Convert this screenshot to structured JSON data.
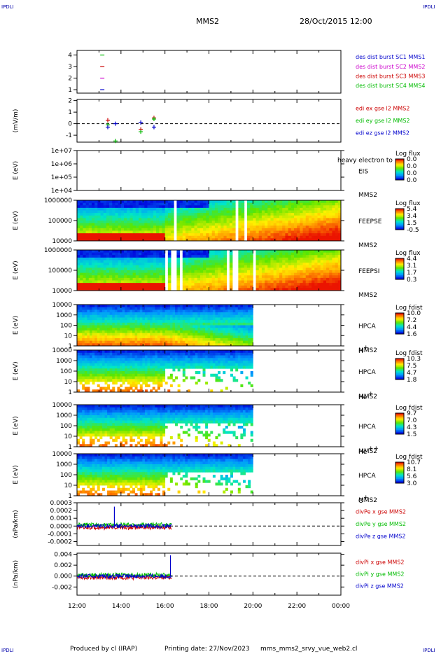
{
  "header": {
    "corner_left": "IPDLI",
    "corner_right": "IPDLI",
    "title": "MMS2",
    "datetime": "28/Oct/2015 12:00"
  },
  "footer": {
    "produced": "Produced by cl (IRAP)",
    "printing": "Printing date: 27/Nov/2023",
    "script": "mms_mms2_srvy_vue_web2.cl",
    "corner_left": "IPDLI",
    "corner_right": "IPDLI"
  },
  "time_axis": {
    "labels": [
      "12:00",
      "14:00",
      "16:00",
      "18:00",
      "20:00",
      "22:00",
      "00:00"
    ],
    "range_hours": [
      12,
      24
    ]
  },
  "chart_data": [
    {
      "type": "scatter",
      "id": "burst",
      "ylim": [
        0.7,
        4.4
      ],
      "yticks": [
        "1",
        "2",
        "3",
        "4"
      ],
      "legend": [
        {
          "label": "des dist burst SC1 MMS1",
          "color": "#0000cc"
        },
        {
          "label": "des dist burst SC2 MMS2",
          "color": "#cc00cc"
        },
        {
          "label": "des dist burst SC3 MMS3",
          "color": "#cc0000"
        },
        {
          "label": "des dist burst SC4 MMS4",
          "color": "#00bb00"
        }
      ],
      "points": [
        {
          "x": 13.15,
          "y": 4,
          "color": "#00bb00"
        },
        {
          "x": 13.15,
          "y": 3,
          "color": "#cc0000"
        },
        {
          "x": 13.15,
          "y": 2,
          "color": "#cc00cc"
        },
        {
          "x": 13.15,
          "y": 1,
          "color": "#0000cc"
        }
      ]
    },
    {
      "type": "scatter",
      "id": "edi",
      "ylabel": "(mV/m)",
      "ylim": [
        -1.6,
        2.1
      ],
      "yticks": [
        "-1",
        "0",
        "1",
        "2"
      ],
      "zero_line": true,
      "legend": [
        {
          "label": "edi ex gse l2 MMS2",
          "color": "#cc0000"
        },
        {
          "label": "edi ey gse l2 MMS2",
          "color": "#00bb00"
        },
        {
          "label": "edi ez gse l2 MMS2",
          "color": "#0000cc"
        }
      ],
      "points": [
        {
          "x": 13.4,
          "y": 0.3,
          "color": "#cc0000"
        },
        {
          "x": 13.4,
          "y": -0.1,
          "color": "#00bb00"
        },
        {
          "x": 13.4,
          "y": -0.3,
          "color": "#0000cc"
        },
        {
          "x": 13.75,
          "y": -1.5,
          "color": "#00bb00"
        },
        {
          "x": 13.75,
          "y": 0.0,
          "color": "#0000cc"
        },
        {
          "x": 14.9,
          "y": -0.5,
          "color": "#cc0000"
        },
        {
          "x": 14.9,
          "y": -0.7,
          "color": "#00bb00"
        },
        {
          "x": 14.9,
          "y": 0.1,
          "color": "#0000cc"
        },
        {
          "x": 15.5,
          "y": 0.5,
          "color": "#cc0000"
        },
        {
          "x": 15.5,
          "y": 0.4,
          "color": "#00bb00"
        },
        {
          "x": 15.5,
          "y": -0.3,
          "color": "#0000cc"
        }
      ]
    },
    {
      "type": "heatmap",
      "id": "eis",
      "ylabel": "E (eV)",
      "yticks": [
        "1e+07",
        "1e+06",
        "1e+05",
        "1e+04"
      ],
      "label_lines": [
        "EIS",
        "MMS2"
      ],
      "overlay_text": "heavy electron to",
      "colorbar": {
        "title": "Log flux",
        "ticks": [
          "0.0",
          "0.0",
          "0.0",
          "0.0"
        ]
      },
      "data_span_hours": null
    },
    {
      "type": "heatmap",
      "id": "feepse",
      "ylabel": "E (eV)",
      "yticks": [
        "1000000",
        "100000",
        "10000"
      ],
      "label_lines": [
        "FEEPSE",
        "MMS2"
      ],
      "colorbar": {
        "title": "Log flux",
        "ticks": [
          "5.4",
          "3.4",
          "1.5",
          "-0.5"
        ]
      },
      "data_span_hours": [
        12,
        24
      ]
    },
    {
      "type": "heatmap",
      "id": "feepsi",
      "ylabel": "E (eV)",
      "yticks": [
        "1000000",
        "100000",
        "10000"
      ],
      "label_lines": [
        "FEEPSI",
        "MMS2"
      ],
      "colorbar": {
        "title": "Log flux",
        "ticks": [
          "4.4",
          "3.1",
          "1.7",
          "0.3"
        ]
      },
      "data_span_hours": [
        12,
        24
      ]
    },
    {
      "type": "heatmap",
      "id": "hpca-h",
      "ylabel": "E (eV)",
      "yticks": [
        "10000",
        "1000",
        "100",
        "10",
        "1"
      ],
      "label_lines": [
        "HPCA",
        "MMS2"
      ],
      "species": "H",
      "species_sup": "+",
      "colorbar": {
        "title": "Log fdist",
        "ticks": [
          "10.0",
          "7.2",
          "4.4",
          "1.6"
        ]
      },
      "data_span_hours": [
        12,
        20
      ]
    },
    {
      "type": "heatmap",
      "id": "hpca-he",
      "ylabel": "E (eV)",
      "yticks": [
        "10000",
        "1000",
        "100",
        "10",
        "1"
      ],
      "label_lines": [
        "HPCA",
        "MMS2"
      ],
      "species": "He",
      "species_sup": "+",
      "colorbar": {
        "title": "Log fdist",
        "ticks": [
          "10.3",
          "7.5",
          "4.7",
          "1.8"
        ]
      },
      "data_span_hours": [
        12,
        20
      ]
    },
    {
      "type": "heatmap",
      "id": "hpca-he2",
      "ylabel": "E (eV)",
      "yticks": [
        "10000",
        "1000",
        "100",
        "10",
        "1"
      ],
      "label_lines": [
        "HPCA",
        "MMS2"
      ],
      "species": "He",
      "species_sup": "++",
      "colorbar": {
        "title": "Log fdist",
        "ticks": [
          "9.7",
          "7.0",
          "4.3",
          "1.5"
        ]
      },
      "data_span_hours": [
        12,
        20
      ]
    },
    {
      "type": "heatmap",
      "id": "hpca-o",
      "ylabel": "E (eV)",
      "yticks": [
        "10000",
        "1000",
        "100",
        "10",
        "1"
      ],
      "label_lines": [
        "HPCA",
        "MMS2"
      ],
      "species": "O",
      "species_sup": "+",
      "colorbar": {
        "title": "Log fdist",
        "ticks": [
          "10.7",
          "8.1",
          "5.6",
          "3.0"
        ]
      },
      "data_span_hours": [
        12,
        20
      ]
    },
    {
      "type": "line",
      "id": "divpe",
      "ylabel": "(nPa/km)",
      "ylim": [
        -0.00025,
        0.0003
      ],
      "yticks": [
        "0.0003",
        "0.0002",
        "0.0001",
        "0.0000",
        "-0.0001",
        "-0.0002"
      ],
      "ytick_values": [
        0.0003,
        0.0002,
        0.0001,
        0,
        -0.0001,
        -0.0002
      ],
      "zero_line": true,
      "legend": [
        {
          "label": "divPe x gse MMS2",
          "color": "#cc0000"
        },
        {
          "label": "divPe y gse MMS2",
          "color": "#00bb00"
        },
        {
          "label": "divPe z gse MMS2",
          "color": "#0000cc"
        }
      ],
      "x_span": [
        12.0,
        16.3
      ],
      "spike": {
        "x": 13.7,
        "y": 0.00025
      }
    },
    {
      "type": "line",
      "id": "divpi",
      "ylabel": "(nPa/km)",
      "ylim": [
        -0.0035,
        0.0042
      ],
      "yticks": [
        "0.004",
        "0.002",
        "0.000",
        "-0.002"
      ],
      "ytick_values": [
        0.004,
        0.002,
        0,
        -0.002
      ],
      "zero_line": true,
      "legend": [
        {
          "label": "divPi x gse MMS2",
          "color": "#cc0000"
        },
        {
          "label": "divPi y gse MMS2",
          "color": "#00bb00"
        },
        {
          "label": "divPi z gse MMS2",
          "color": "#0000cc"
        }
      ],
      "x_span": [
        12.0,
        16.3
      ],
      "spike": {
        "x": 16.25,
        "y": 0.0038
      }
    }
  ]
}
